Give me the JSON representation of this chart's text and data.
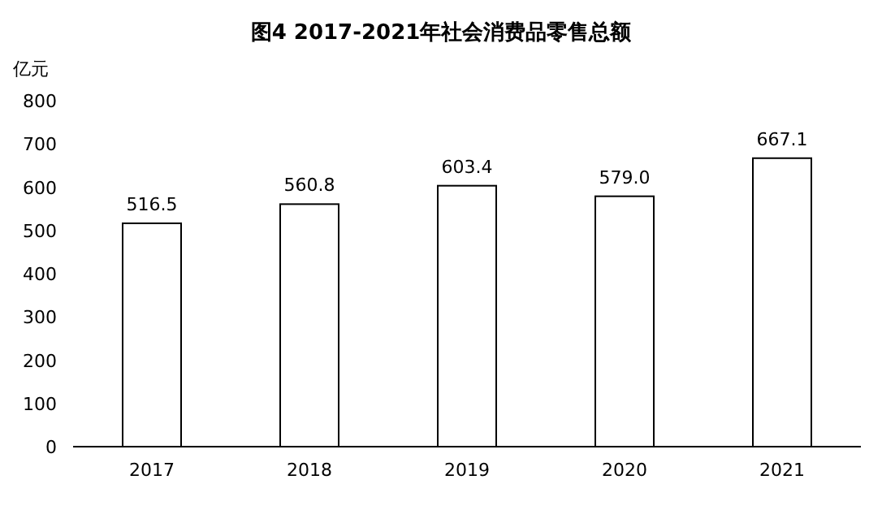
{
  "chart_data": {
    "type": "bar",
    "title": "图4 2017-2021年社会消费品零售总额",
    "ylabel": "亿元",
    "categories": [
      "2017",
      "2018",
      "2019",
      "2020",
      "2021"
    ],
    "values": [
      516.5,
      560.8,
      603.4,
      579.0,
      667.1
    ],
    "value_labels": [
      "516.5",
      "560.8",
      "603.4",
      "579.0",
      "667.1"
    ],
    "color": "#ffffff",
    "ylim": [
      0,
      800
    ],
    "yticks": [
      0,
      100,
      200,
      300,
      400,
      500,
      600,
      700,
      800
    ],
    "grid": false
  }
}
